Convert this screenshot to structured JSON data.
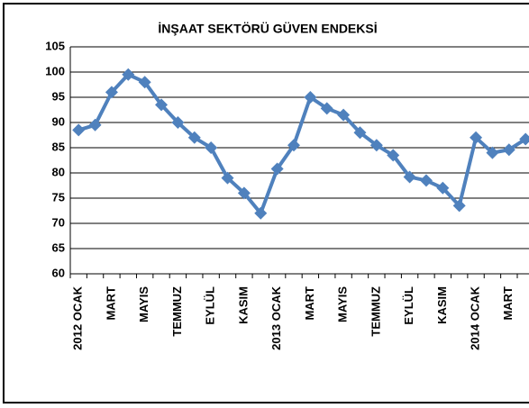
{
  "chart_data": {
    "type": "line",
    "title": "İNŞAAT SEKTÖRÜ GÜVEN ENDEKSİ",
    "categories": [
      "2012 OCAK",
      null,
      "MART",
      null,
      "MAYIS",
      null,
      "TEMMUZ",
      null,
      "EYLÜL",
      null,
      "KASIM",
      null,
      "2013 OCAK",
      null,
      "MART",
      null,
      "MAYIS",
      null,
      "TEMMUZ",
      null,
      "EYLÜL",
      null,
      "KASIM",
      null,
      "2014 OCAK",
      null,
      "MART",
      null
    ],
    "series": [
      {
        "color": "#4f81bd",
        "values": [
          88.5,
          89.5,
          96,
          99.5,
          98,
          93.5,
          90,
          87,
          85,
          79,
          76,
          72,
          80.8,
          85.5,
          95,
          92.8,
          91.5,
          88,
          85.5,
          83.5,
          79.2,
          78.5,
          77,
          73.5,
          87,
          84,
          84.6,
          86.7
        ]
      }
    ],
    "ylim": [
      60,
      105
    ],
    "yticks": [
      60,
      65,
      70,
      75,
      80,
      85,
      90,
      95,
      100,
      105
    ],
    "grid": true
  }
}
